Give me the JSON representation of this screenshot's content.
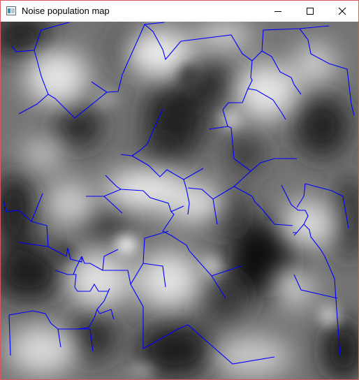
{
  "window": {
    "title": "Noise population map",
    "icons": {
      "app": "app-window-icon",
      "minimize": "minimize-icon",
      "maximize": "maximize-icon",
      "close": "close-icon"
    }
  },
  "colors": {
    "border": "#d8595c",
    "road": "#0000ff",
    "noise_dark": "#141414",
    "noise_light": "#e6e6e6"
  }
}
